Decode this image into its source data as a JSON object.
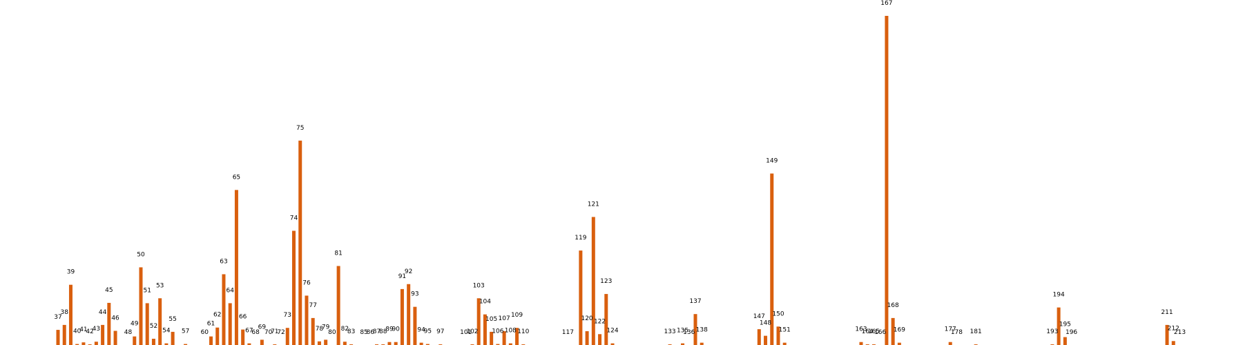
{
  "colors": {
    "bar": "#d95f0e",
    "background": "#ffffff",
    "label": "#000000"
  },
  "chart_data": {
    "type": "bar",
    "title": "",
    "xlabel": "",
    "ylabel": "",
    "ylim": [
      0,
      1000
    ],
    "grid": false,
    "legend": "none",
    "x_axis": {
      "min": 30,
      "max": 222,
      "ticks_shown": false
    },
    "bars": [
      {
        "x": 37,
        "label": "37",
        "value": 46
      },
      {
        "x": 38,
        "label": "38",
        "value": 61
      },
      {
        "x": 39,
        "label": "39",
        "value": 183
      },
      {
        "x": 40,
        "label": "40",
        "value": 3
      },
      {
        "x": 41,
        "label": "41",
        "value": 8
      },
      {
        "x": 42,
        "label": "42",
        "value": 2
      },
      {
        "x": 43,
        "label": "43",
        "value": 10
      },
      {
        "x": 44,
        "label": "44",
        "value": 61
      },
      {
        "x": 45,
        "label": "45",
        "value": 128
      },
      {
        "x": 46,
        "label": "46",
        "value": 43
      },
      {
        "x": 48,
        "label": "48",
        "value": 0
      },
      {
        "x": 49,
        "label": "49",
        "value": 26
      },
      {
        "x": 50,
        "label": "50",
        "value": 236
      },
      {
        "x": 51,
        "label": "51",
        "value": 127
      },
      {
        "x": 52,
        "label": "52",
        "value": 19
      },
      {
        "x": 53,
        "label": "53",
        "value": 142
      },
      {
        "x": 54,
        "label": "54",
        "value": 5
      },
      {
        "x": 55,
        "label": "55",
        "value": 40
      },
      {
        "x": 57,
        "label": "57",
        "value": 3
      },
      {
        "x": 60,
        "label": "60",
        "value": 0
      },
      {
        "x": 61,
        "label": "61",
        "value": 26
      },
      {
        "x": 62,
        "label": "62",
        "value": 53
      },
      {
        "x": 63,
        "label": "63",
        "value": 215
      },
      {
        "x": 64,
        "label": "64",
        "value": 127
      },
      {
        "x": 65,
        "label": "65",
        "value": 471
      },
      {
        "x": 66,
        "label": "66",
        "value": 47
      },
      {
        "x": 67,
        "label": "67",
        "value": 5
      },
      {
        "x": 68,
        "label": "68",
        "value": 0
      },
      {
        "x": 69,
        "label": "69",
        "value": 16
      },
      {
        "x": 70,
        "label": "70",
        "value": 0
      },
      {
        "x": 71,
        "label": "71",
        "value": 2
      },
      {
        "x": 72,
        "label": "72",
        "value": 0
      },
      {
        "x": 73,
        "label": "73",
        "value": 52
      },
      {
        "x": 74,
        "label": "74",
        "value": 347
      },
      {
        "x": 75,
        "label": "75",
        "value": 621
      },
      {
        "x": 76,
        "label": "76",
        "value": 150
      },
      {
        "x": 77,
        "label": "77",
        "value": 82
      },
      {
        "x": 78,
        "label": "78",
        "value": 11
      },
      {
        "x": 79,
        "label": "79",
        "value": 16
      },
      {
        "x": 80,
        "label": "80",
        "value": 0
      },
      {
        "x": 81,
        "label": "81",
        "value": 240
      },
      {
        "x": 82,
        "label": "82",
        "value": 10
      },
      {
        "x": 83,
        "label": "83",
        "value": 2
      },
      {
        "x": 85,
        "label": "85",
        "value": 0
      },
      {
        "x": 86,
        "label": "86",
        "value": 0
      },
      {
        "x": 87,
        "label": "87",
        "value": 2
      },
      {
        "x": 88,
        "label": "88",
        "value": 2
      },
      {
        "x": 89,
        "label": "89",
        "value": 9
      },
      {
        "x": 90,
        "label": "90",
        "value": 9
      },
      {
        "x": 91,
        "label": "91",
        "value": 170
      },
      {
        "x": 92,
        "label": "92",
        "value": 185
      },
      {
        "x": 93,
        "label": "93",
        "value": 116
      },
      {
        "x": 94,
        "label": "94",
        "value": 7
      },
      {
        "x": 95,
        "label": "95",
        "value": 3
      },
      {
        "x": 97,
        "label": "97",
        "value": 2
      },
      {
        "x": 101,
        "label": "101",
        "value": 0
      },
      {
        "x": 102,
        "label": "102",
        "value": 2
      },
      {
        "x": 103,
        "label": "103",
        "value": 142
      },
      {
        "x": 104,
        "label": "104",
        "value": 93
      },
      {
        "x": 105,
        "label": "105",
        "value": 40
      },
      {
        "x": 106,
        "label": "106",
        "value": 3
      },
      {
        "x": 107,
        "label": "107",
        "value": 42
      },
      {
        "x": 108,
        "label": "108",
        "value": 5
      },
      {
        "x": 109,
        "label": "109",
        "value": 52
      },
      {
        "x": 110,
        "label": "110",
        "value": 2
      },
      {
        "x": 117,
        "label": "117",
        "value": 0
      },
      {
        "x": 119,
        "label": "119",
        "value": 287
      },
      {
        "x": 120,
        "label": "120",
        "value": 42
      },
      {
        "x": 121,
        "label": "121",
        "value": 389
      },
      {
        "x": 122,
        "label": "122",
        "value": 33
      },
      {
        "x": 123,
        "label": "123",
        "value": 155
      },
      {
        "x": 124,
        "label": "124",
        "value": 5
      },
      {
        "x": 133,
        "label": "133",
        "value": 2
      },
      {
        "x": 135,
        "label": "135",
        "value": 5
      },
      {
        "x": 136,
        "label": "136",
        "value": 0
      },
      {
        "x": 137,
        "label": "137",
        "value": 94
      },
      {
        "x": 138,
        "label": "138",
        "value": 7
      },
      {
        "x": 147,
        "label": "147",
        "value": 48
      },
      {
        "x": 148,
        "label": "148",
        "value": 28
      },
      {
        "x": 149,
        "label": "149",
        "value": 521
      },
      {
        "x": 150,
        "label": "150",
        "value": 56
      },
      {
        "x": 151,
        "label": "151",
        "value": 7
      },
      {
        "x": 163,
        "label": "163",
        "value": 9
      },
      {
        "x": 164,
        "label": "164",
        "value": 2
      },
      {
        "x": 165,
        "label": "165",
        "value": 2
      },
      {
        "x": 166,
        "label": "166",
        "value": 0
      },
      {
        "x": 167,
        "label": "167",
        "value": 1000
      },
      {
        "x": 168,
        "label": "168",
        "value": 82
      },
      {
        "x": 169,
        "label": "169",
        "value": 7
      },
      {
        "x": 177,
        "label": "177",
        "value": 9
      },
      {
        "x": 178,
        "label": "178",
        "value": 0
      },
      {
        "x": 181,
        "label": "181",
        "value": 2
      },
      {
        "x": 193,
        "label": "193",
        "value": 2
      },
      {
        "x": 194,
        "label": "194",
        "value": 114
      },
      {
        "x": 195,
        "label": "195",
        "value": 24
      },
      {
        "x": 196,
        "label": "196",
        "value": 0
      },
      {
        "x": 211,
        "label": "211",
        "value": 61
      },
      {
        "x": 212,
        "label": "212",
        "value": 12
      },
      {
        "x": 213,
        "label": "213",
        "value": 0
      }
    ]
  }
}
